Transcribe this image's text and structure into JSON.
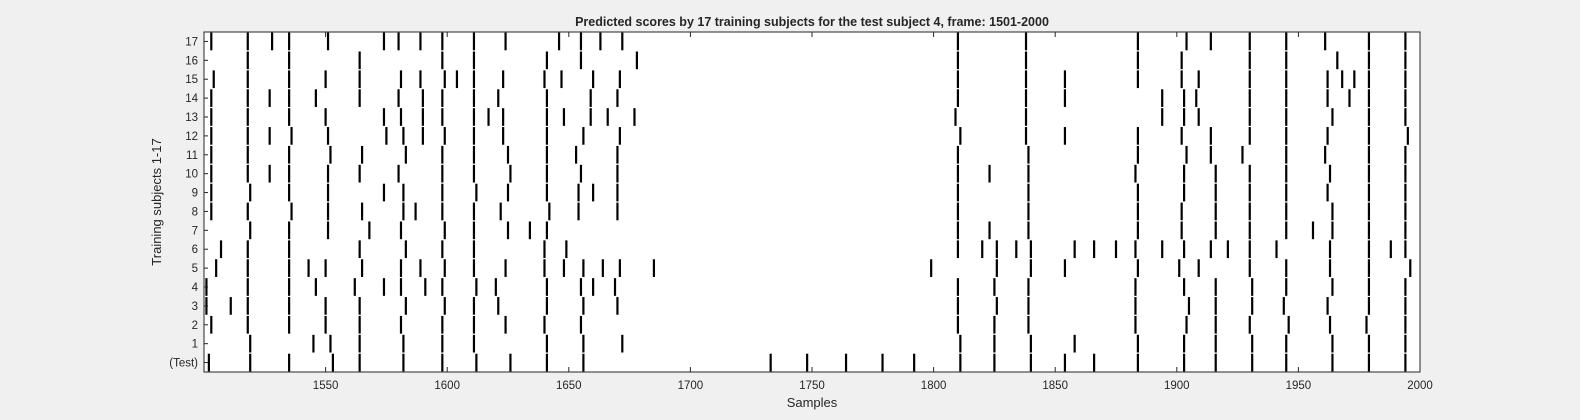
{
  "chart_data": {
    "type": "raster",
    "title": "Predicted scores by 17 training subjects for the test subject 4, frame: 1501-2000",
    "xlabel": "Samples",
    "ylabel": "Training subjects 1-17",
    "xlim": [
      1500,
      2000
    ],
    "xticks": [
      1550,
      1600,
      1650,
      1700,
      1750,
      1800,
      1850,
      1900,
      1950,
      2000
    ],
    "rows": [
      "(Test)",
      "1",
      "2",
      "3",
      "4",
      "5",
      "6",
      "7",
      "8",
      "9",
      "10",
      "11",
      "12",
      "13",
      "14",
      "15",
      "16",
      "17"
    ],
    "mark_color": "#000000",
    "background": "#ffffff",
    "grid": false,
    "events": {
      "(Test)": [
        1502,
        1519,
        1535,
        1553,
        1564,
        1582,
        1598,
        1612,
        1626,
        1641,
        1656,
        1733,
        1748,
        1764,
        1779,
        1792,
        1811,
        1825,
        1840,
        1854,
        1866,
        1884,
        1903,
        1916,
        1931,
        1945,
        1964,
        1979,
        1994
      ],
      "1": [
        1519,
        1545,
        1552,
        1564,
        1582,
        1598,
        1611,
        1641,
        1656,
        1672,
        1811,
        1825,
        1840,
        1858,
        1884,
        1903,
        1916,
        1931,
        1945,
        1964,
        1979,
        1994
      ],
      "2": [
        1503,
        1518,
        1535,
        1550,
        1564,
        1581,
        1598,
        1611,
        1624,
        1640,
        1655,
        1810,
        1825,
        1839,
        1883,
        1904,
        1916,
        1930,
        1946,
        1963,
        1978,
        1994
      ],
      "3": [
        1501,
        1511,
        1518,
        1535,
        1550,
        1564,
        1583,
        1599,
        1611,
        1621,
        1641,
        1656,
        1670,
        1810,
        1826,
        1839,
        1883,
        1905,
        1916,
        1931,
        1944,
        1962,
        1979,
        1994
      ],
      "4": [
        1501,
        1518,
        1535,
        1546,
        1562,
        1574,
        1581,
        1591,
        1598,
        1612,
        1620,
        1641,
        1655,
        1660,
        1669,
        1810,
        1825,
        1839,
        1883,
        1903,
        1916,
        1931,
        1945,
        1964,
        1979,
        1994
      ],
      "5": [
        1505,
        1518,
        1535,
        1543,
        1550,
        1565,
        1581,
        1589,
        1599,
        1611,
        1624,
        1640,
        1648,
        1656,
        1664,
        1671,
        1685,
        1799,
        1826,
        1840,
        1854,
        1884,
        1901,
        1909,
        1930,
        1945,
        1963,
        1979,
        1996
      ],
      "6": [
        1507,
        1518,
        1535,
        1564,
        1583,
        1598,
        1611,
        1640,
        1649,
        1810,
        1820,
        1826,
        1834,
        1840,
        1858,
        1866,
        1875,
        1883,
        1894,
        1903,
        1914,
        1921,
        1930,
        1941,
        1963,
        1979,
        1988,
        1994
      ],
      "7": [
        1519,
        1535,
        1551,
        1568,
        1581,
        1599,
        1611,
        1625,
        1634,
        1641,
        1810,
        1823,
        1839,
        1884,
        1902,
        1916,
        1930,
        1945,
        1956,
        1964,
        1979,
        1994
      ],
      "8": [
        1503,
        1518,
        1536,
        1551,
        1565,
        1582,
        1587,
        1598,
        1611,
        1622,
        1642,
        1654,
        1670,
        1810,
        1839,
        1884,
        1902,
        1916,
        1930,
        1945,
        1964,
        1979,
        1994
      ],
      "9": [
        1503,
        1519,
        1535,
        1551,
        1574,
        1582,
        1598,
        1612,
        1625,
        1641,
        1654,
        1660,
        1670,
        1810,
        1839,
        1884,
        1903,
        1916,
        1930,
        1945,
        1962,
        1979,
        1994
      ],
      "10": [
        1503,
        1518,
        1527,
        1535,
        1551,
        1564,
        1580,
        1598,
        1611,
        1626,
        1641,
        1655,
        1670,
        1810,
        1823,
        1839,
        1883,
        1903,
        1916,
        1930,
        1945,
        1963,
        1979,
        1994
      ],
      "11": [
        1503,
        1518,
        1535,
        1552,
        1565,
        1583,
        1598,
        1611,
        1625,
        1641,
        1653,
        1670,
        1810,
        1839,
        1884,
        1904,
        1914,
        1927,
        1945,
        1961,
        1979,
        1994
      ],
      "12": [
        1503,
        1518,
        1527,
        1536,
        1551,
        1575,
        1582,
        1590,
        1599,
        1611,
        1623,
        1641,
        1656,
        1671,
        1811,
        1838,
        1854,
        1884,
        1902,
        1914,
        1930,
        1945,
        1962,
        1979,
        1995
      ],
      "13": [
        1503,
        1518,
        1535,
        1550,
        1574,
        1581,
        1590,
        1598,
        1611,
        1617,
        1623,
        1641,
        1648,
        1659,
        1666,
        1677,
        1809,
        1838,
        1894,
        1903,
        1909,
        1930,
        1945,
        1964,
        1979,
        1994
      ],
      "14": [
        1503,
        1518,
        1527,
        1535,
        1546,
        1564,
        1580,
        1590,
        1598,
        1611,
        1621,
        1641,
        1659,
        1670,
        1810,
        1838,
        1854,
        1894,
        1903,
        1908,
        1930,
        1945,
        1962,
        1971,
        1979,
        1994
      ],
      "15": [
        1504,
        1518,
        1535,
        1550,
        1564,
        1581,
        1589,
        1599,
        1604,
        1611,
        1623,
        1640,
        1647,
        1660,
        1671,
        1810,
        1838,
        1854,
        1884,
        1902,
        1909,
        1930,
        1945,
        1962,
        1968,
        1973,
        1979,
        1994
      ],
      "16": [
        1518,
        1535,
        1564,
        1598,
        1611,
        1641,
        1655,
        1678,
        1810,
        1838,
        1884,
        1902,
        1930,
        1945,
        1966,
        1979,
        1994
      ],
      "17": [
        1503,
        1518,
        1528,
        1535,
        1551,
        1574,
        1580,
        1589,
        1598,
        1611,
        1624,
        1646,
        1655,
        1663,
        1672,
        1810,
        1838,
        1884,
        1904,
        1914,
        1930,
        1945,
        1961,
        1979,
        1994
      ]
    }
  }
}
